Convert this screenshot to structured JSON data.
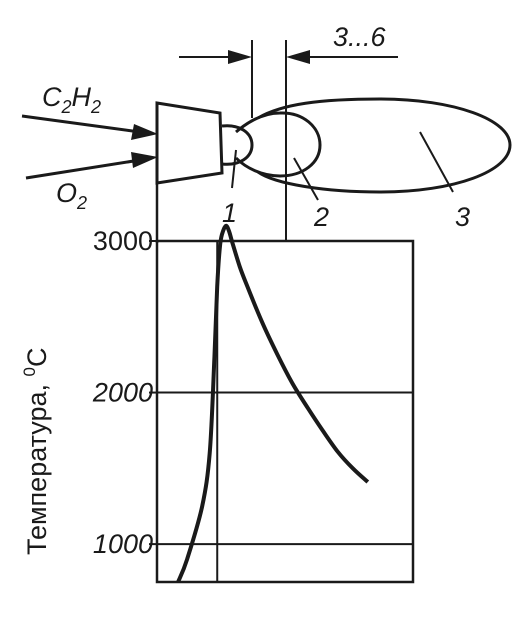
{
  "flame": {
    "gas_acetylene": {
      "base": "C",
      "sub1": "2",
      "mid": "H",
      "sub2": "2"
    },
    "gas_oxygen": {
      "base": "O",
      "sub": "2"
    },
    "distance_label": "3...6",
    "zone_labels": [
      "1",
      "2",
      "3"
    ]
  },
  "chart": {
    "ylabel_text": "Температура, ",
    "ylabel_sup": "0",
    "ylabel_unit": "C"
  },
  "chart_data": {
    "type": "line",
    "y_ticks": [
      "3000",
      "2000",
      "1000"
    ],
    "ylim": [
      750,
      3000
    ],
    "grid": true,
    "series": [
      {
        "x": [
          -26,
          -20,
          -10,
          -5,
          -2,
          0,
          2,
          4,
          6,
          8,
          10,
          15,
          20,
          30,
          40,
          50,
          60,
          70,
          80,
          90,
          100
        ],
        "y": [
          750,
          900,
          1250,
          1600,
          2200,
          2700,
          2980,
          3070,
          3100,
          3060,
          2990,
          2830,
          2700,
          2460,
          2250,
          2060,
          1900,
          1750,
          1610,
          1500,
          1410
        ]
      }
    ],
    "xlim": [
      -40,
      130
    ],
    "cursor_x": 0
  }
}
